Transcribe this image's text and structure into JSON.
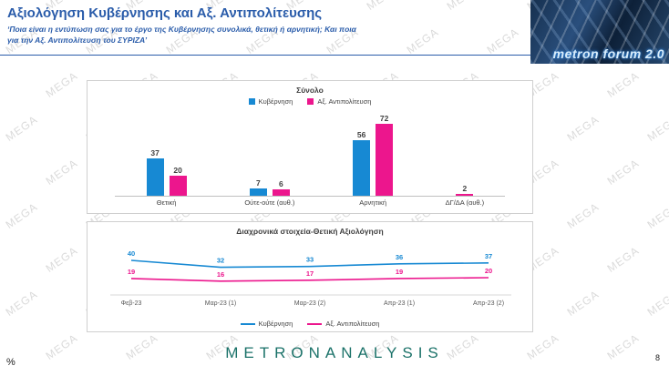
{
  "header": {
    "title": "Αξιολόγηση Κυβέρνησης και Αξ. Αντιπολίτευσης",
    "subtitle_line1": "‘Ποια είναι η εντύπωση σας για το έργο της Κυβέρνησης συνολικά, θετική ή αρνητική; Και ποια",
    "subtitle_line2": "για την Αξ. Αντιπολίτευση του ΣΥΡΙΖΑ’",
    "logo_text": "metron forum 2.0"
  },
  "watermark": {
    "text": "MEGA"
  },
  "colors": {
    "government_blue": "#1789D3",
    "opposition_pink": "#EC168D",
    "title_blue": "#2A5CAA",
    "footer_teal": "#1B7269"
  },
  "chart_data": [
    {
      "type": "bar",
      "title": "Σύνολο",
      "categories": [
        "Θετική",
        "Ούτε-ούτε (αυθ.)",
        "Αρνητική",
        "ΔΓ/ΔΑ (αυθ.)"
      ],
      "series": [
        {
          "name": "Κυβέρνηση",
          "color": "#1789D3",
          "values": [
            37,
            7,
            56,
            null
          ]
        },
        {
          "name": "Αξ. Αντιπολίτευση",
          "color": "#EC168D",
          "values": [
            20,
            6,
            72,
            2
          ]
        }
      ],
      "ylim": [
        0,
        80
      ],
      "legend_position": "top",
      "grid": false
    },
    {
      "type": "line",
      "title": "Διαχρονικά στοιχεία-Θετική Αξιολόγηση",
      "categories": [
        "Φεβ-23",
        "Μαρ-23 (1)",
        "Μαρ-23 (2)",
        "Απρ-23 (1)",
        "Απρ-23 (2)"
      ],
      "series": [
        {
          "name": "Κυβέρνηση",
          "color": "#1789D3",
          "values": [
            40,
            32,
            33,
            36,
            37
          ]
        },
        {
          "name": "Αξ. Αντιπολίτευση",
          "color": "#EC168D",
          "values": [
            19,
            16,
            17,
            19,
            20
          ]
        }
      ],
      "ylim": [
        0,
        50
      ],
      "legend_position": "bottom",
      "grid": false
    }
  ],
  "footer": {
    "logo": "METRONANALYSIS",
    "percent_label": "%",
    "page_number": "8"
  }
}
